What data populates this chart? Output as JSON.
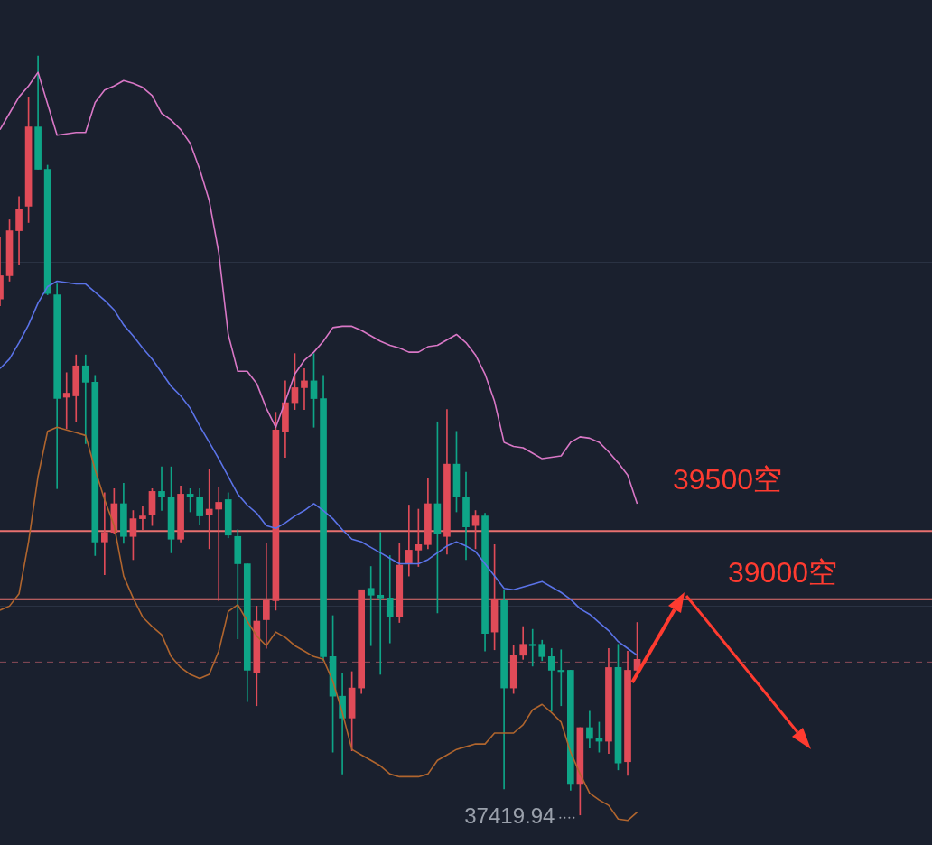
{
  "chart_data": {
    "type": "candlestick",
    "categories": [
      null,
      null,
      null,
      null,
      null,
      null,
      null,
      null,
      null,
      null,
      null,
      null,
      null,
      null,
      null,
      null,
      null,
      null,
      null,
      null,
      null,
      null,
      null,
      null,
      null,
      null,
      null,
      null,
      null,
      null,
      null,
      null,
      null,
      null,
      null,
      null,
      null,
      null,
      null,
      null,
      null,
      null,
      null,
      null,
      null,
      null,
      null,
      null,
      null,
      null,
      null,
      null,
      null,
      null,
      null,
      null,
      null,
      null,
      null,
      null,
      null,
      null,
      null,
      null,
      null,
      null,
      null,
      null,
      null,
      null,
      null,
      null,
      null,
      null,
      null,
      null,
      null,
      null,
      null,
      null,
      null,
      null,
      null,
      null,
      null,
      null,
      null,
      null,
      null,
      null,
      null,
      null,
      null,
      null,
      null,
      null,
      null,
      null,
      null
    ],
    "ohlc": [
      [
        41200,
        41650,
        41150,
        41370
      ],
      [
        41370,
        41780,
        41330,
        41700
      ],
      [
        41700,
        41950,
        41450,
        41860
      ],
      [
        41880,
        42680,
        41760,
        42460
      ],
      [
        42460,
        42980,
        42150,
        42150
      ],
      [
        42150,
        42180,
        41230,
        41240
      ],
      [
        41230,
        41310,
        39810,
        40470
      ],
      [
        40480,
        40660,
        40250,
        40510
      ],
      [
        40490,
        40790,
        40300,
        40710
      ],
      [
        40710,
        40790,
        40140,
        40590
      ],
      [
        40590,
        40640,
        39320,
        39420
      ],
      [
        39420,
        39780,
        39180,
        39490
      ],
      [
        39490,
        39810,
        39480,
        39700
      ],
      [
        39700,
        39850,
        39410,
        39460
      ],
      [
        39460,
        39650,
        39290,
        39590
      ],
      [
        39590,
        39680,
        39510,
        39610
      ],
      [
        39620,
        39810,
        39540,
        39790
      ],
      [
        39790,
        39970,
        39650,
        39750
      ],
      [
        39750,
        39970,
        39340,
        39440
      ],
      [
        39440,
        39830,
        39420,
        39770
      ],
      [
        39770,
        39810,
        39640,
        39750
      ],
      [
        39750,
        39810,
        39550,
        39610
      ],
      [
        39620,
        39950,
        39370,
        39660
      ],
      [
        39660,
        39820,
        38990,
        39710
      ],
      [
        39730,
        39780,
        39450,
        39470
      ],
      [
        39460,
        39510,
        38710,
        39260
      ],
      [
        39260,
        39260,
        38250,
        38480
      ],
      [
        38460,
        38950,
        38220,
        38840
      ],
      [
        38850,
        39410,
        38640,
        38990
      ],
      [
        38990,
        40370,
        38920,
        40240
      ],
      [
        40230,
        40600,
        40040,
        40440
      ],
      [
        40440,
        40800,
        40390,
        40550
      ],
      [
        40550,
        40690,
        40390,
        40600
      ],
      [
        40600,
        40800,
        40260,
        40470
      ],
      [
        40470,
        40640,
        38550,
        38580
      ],
      [
        38580,
        38880,
        37880,
        38290
      ],
      [
        38290,
        38460,
        37720,
        38130
      ],
      [
        38130,
        38470,
        37890,
        38350
      ],
      [
        38350,
        39070,
        38310,
        39070
      ],
      [
        39080,
        39240,
        38660,
        39030
      ],
      [
        39030,
        39490,
        38450,
        39010
      ],
      [
        39010,
        39320,
        38680,
        38870
      ],
      [
        38870,
        39410,
        38830,
        39250
      ],
      [
        39260,
        39690,
        39170,
        39360
      ],
      [
        39360,
        39660,
        39240,
        39400
      ],
      [
        39400,
        39890,
        39370,
        39700
      ],
      [
        39700,
        40300,
        38900,
        39480
      ],
      [
        39460,
        40390,
        39330,
        39990
      ],
      [
        39990,
        40230,
        39640,
        39750
      ],
      [
        39750,
        39930,
        39290,
        39530
      ],
      [
        39540,
        39650,
        39370,
        39610
      ],
      [
        39610,
        39630,
        38620,
        38750
      ],
      [
        38760,
        39400,
        38630,
        39000
      ],
      [
        38990,
        39070,
        37610,
        38350
      ],
      [
        38350,
        38660,
        38310,
        38590
      ],
      [
        38590,
        38800,
        38560,
        38670
      ],
      [
        38670,
        38780,
        38510,
        38660
      ],
      [
        38670,
        38700,
        38550,
        38580
      ],
      [
        38580,
        38640,
        38180,
        38480
      ],
      [
        38480,
        38630,
        38220,
        38470
      ],
      [
        38480,
        38480,
        37600,
        37650
      ],
      [
        37650,
        38060,
        37419.94,
        38060
      ],
      [
        38060,
        38180,
        37910,
        37980
      ],
      [
        37980,
        38100,
        37880,
        37960
      ],
      [
        37960,
        38640,
        37870,
        38500
      ],
      [
        38500,
        38670,
        37750,
        37800
      ],
      [
        37810,
        38620,
        37710,
        38480
      ],
      [
        38480,
        38830,
        38460,
        38560
      ],
      null,
      null,
      null,
      null,
      null,
      null,
      null,
      null,
      null,
      null,
      null,
      null,
      null,
      null,
      null,
      null,
      null,
      null,
      null,
      null,
      null,
      null,
      null,
      null,
      null,
      null,
      null,
      null,
      null,
      null,
      null
    ],
    "colors": [
      "#e04b58",
      "#e04b58",
      "#e04b58",
      "#e04b58",
      "#0ea587",
      "#0ea587",
      "#0ea587",
      "#e04b58",
      "#e04b58",
      "#0ea587",
      "#0ea587",
      "#e04b58",
      "#e04b58",
      "#0ea587",
      "#e04b58",
      "#e04b58",
      "#e04b58",
      "#0ea587",
      "#0ea587",
      "#e04b58",
      "#0ea587",
      "#0ea587",
      "#e04b58",
      "#e04b58",
      "#0ea587",
      "#0ea587",
      "#0ea587",
      "#e04b58",
      "#e04b58",
      "#e04b58",
      "#e04b58",
      "#e04b58",
      "#e04b58",
      "#0ea587",
      "#0ea587",
      "#0ea587",
      "#0ea587",
      "#e04b58",
      "#e04b58",
      "#0ea587",
      "#0ea587",
      "#0ea587",
      "#e04b58",
      "#e04b58",
      "#e04b58",
      "#e04b58",
      "#0ea587",
      "#e04b58",
      "#0ea587",
      "#0ea587",
      "#e04b58",
      "#0ea587",
      "#e04b58",
      "#0ea587",
      "#e04b58",
      "#e04b58",
      "#0ea587",
      "#0ea587",
      "#0ea587",
      "#0ea587",
      "#0ea587",
      "#e04b58",
      "#0ea587",
      "#0ea587",
      "#e04b58",
      "#0ea587",
      "#e04b58",
      "#e04b58",
      null,
      null,
      null,
      null,
      null,
      null,
      null,
      null,
      null,
      null,
      null,
      null,
      null,
      null,
      null,
      null,
      null,
      null,
      null,
      null,
      null,
      null,
      null,
      null,
      null,
      null,
      null,
      null,
      null,
      null,
      null
    ],
    "series": [
      {
        "type": "line",
        "color": "#d977c6",
        "values": [
          42440,
          42560,
          42680,
          42760,
          42860,
          42630,
          42400,
          42410,
          42420,
          42420,
          42640,
          42730,
          42760,
          42800,
          42780,
          42750,
          42690,
          42560,
          42510,
          42440,
          42340,
          42150,
          41920,
          41540,
          40940,
          40670,
          40670,
          40580,
          40400,
          40260,
          40450,
          40650,
          40750,
          40810,
          40890,
          40990,
          41000,
          41000,
          40970,
          40930,
          40890,
          40860,
          40840,
          40810,
          40810,
          40850,
          40860,
          40900,
          40940,
          40880,
          40790,
          40650,
          40450,
          40150,
          40120,
          40110,
          40070,
          40030,
          40040,
          40050,
          40150,
          40190,
          40180,
          40150,
          40080,
          40000,
          39910,
          39700,
          null,
          null,
          null,
          null,
          null,
          null,
          null,
          null,
          null,
          null,
          null,
          null,
          null,
          null,
          null,
          null,
          null,
          null,
          null,
          null,
          null,
          null,
          null,
          null,
          null,
          null,
          null,
          null,
          null,
          null,
          null
        ]
      },
      {
        "type": "line",
        "color": "#5b73e8",
        "values": [
          40690,
          40760,
          40880,
          41010,
          41170,
          41290,
          41330,
          41320,
          41310,
          41310,
          41250,
          41190,
          41120,
          41010,
          40930,
          40840,
          40760,
          40660,
          40560,
          40490,
          40400,
          40270,
          40150,
          40030,
          39900,
          39770,
          39690,
          39630,
          39540,
          39520,
          39560,
          39610,
          39650,
          39700,
          39650,
          39590,
          39510,
          39440,
          39420,
          39380,
          39340,
          39300,
          39260,
          39260,
          39260,
          39290,
          39340,
          39390,
          39420,
          39390,
          39350,
          39260,
          39170,
          39080,
          39070,
          39090,
          39110,
          39130,
          39090,
          39050,
          39000,
          38930,
          38890,
          38830,
          38770,
          38690,
          38640,
          38590,
          null,
          null,
          null,
          null,
          null,
          null,
          null,
          null,
          null,
          null,
          null,
          null,
          null,
          null,
          null,
          null,
          null,
          null,
          null,
          null,
          null,
          null,
          null,
          null,
          null,
          null,
          null,
          null,
          null,
          null,
          null
        ]
      },
      {
        "type": "line",
        "color": "#b0652e",
        "values": [
          38920,
          38950,
          39040,
          39420,
          39900,
          40230,
          40260,
          40240,
          40220,
          40200,
          39950,
          39730,
          39540,
          39170,
          39010,
          38870,
          38800,
          38740,
          38580,
          38500,
          38450,
          38420,
          38450,
          38620,
          38910,
          38960,
          38840,
          38730,
          38660,
          38760,
          38720,
          38660,
          38620,
          38580,
          38560,
          38400,
          38170,
          37900,
          37860,
          37820,
          37780,
          37720,
          37700,
          37700,
          37700,
          37720,
          37820,
          37860,
          37900,
          37920,
          37940,
          37940,
          38020,
          38020,
          38020,
          38080,
          38190,
          38230,
          38170,
          38100,
          37880,
          37720,
          37580,
          37530,
          37490,
          37390,
          37380,
          37440,
          null,
          null,
          null,
          null,
          null,
          null,
          null,
          null,
          null,
          null,
          null,
          null,
          null,
          null,
          null,
          null,
          null,
          null,
          null,
          null,
          null,
          null,
          null,
          null,
          null,
          null,
          null,
          null,
          null,
          null,
          null
        ]
      }
    ],
    "ylim": [
      37200,
      43390
    ],
    "yticks": [
      {
        "value": 41470,
        "label": null
      },
      {
        "value": 38950,
        "label": null
      }
    ],
    "grid": "y",
    "ref_lines": [
      {
        "axis": "y",
        "value": 39500,
        "label": "39500空",
        "color": "#e8706f"
      },
      {
        "axis": "y",
        "value": 39000,
        "label": "39000空",
        "color": "#e8706f"
      },
      {
        "axis": "y",
        "value": 38540,
        "color": "#8a4a58",
        "line_style": "dashed"
      }
    ],
    "annotations": [
      "37419.94"
    ],
    "marker": "none",
    "tick_labels": false
  }
}
